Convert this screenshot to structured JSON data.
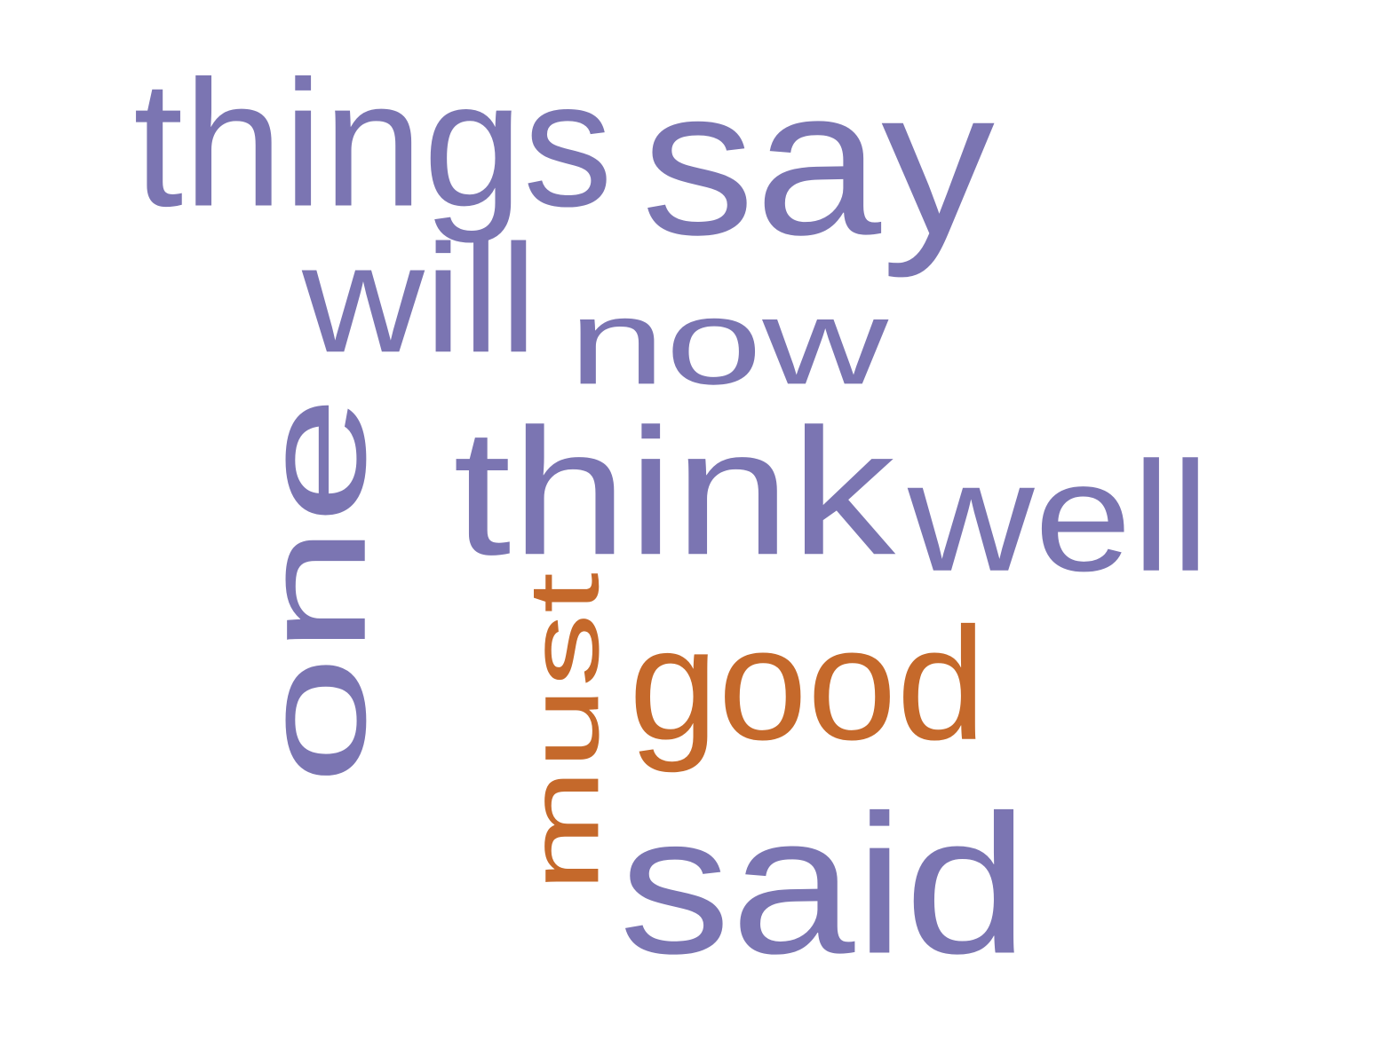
{
  "colors": {
    "primary": "#7b75b2",
    "accent": "#c5692b",
    "background": "#ffffff"
  },
  "words": [
    {
      "id": "things",
      "text": "things",
      "color": "primary",
      "rotated": false
    },
    {
      "id": "say",
      "text": "say",
      "color": "primary",
      "rotated": false
    },
    {
      "id": "will",
      "text": "will",
      "color": "primary",
      "rotated": false
    },
    {
      "id": "now",
      "text": "now",
      "color": "primary",
      "rotated": false
    },
    {
      "id": "one",
      "text": "one",
      "color": "primary",
      "rotated": true
    },
    {
      "id": "think",
      "text": "think",
      "color": "primary",
      "rotated": false
    },
    {
      "id": "well",
      "text": "well",
      "color": "primary",
      "rotated": false
    },
    {
      "id": "good",
      "text": "good",
      "color": "accent",
      "rotated": false
    },
    {
      "id": "must",
      "text": "must",
      "color": "accent",
      "rotated": true
    },
    {
      "id": "said",
      "text": "said",
      "color": "primary",
      "rotated": false
    }
  ]
}
